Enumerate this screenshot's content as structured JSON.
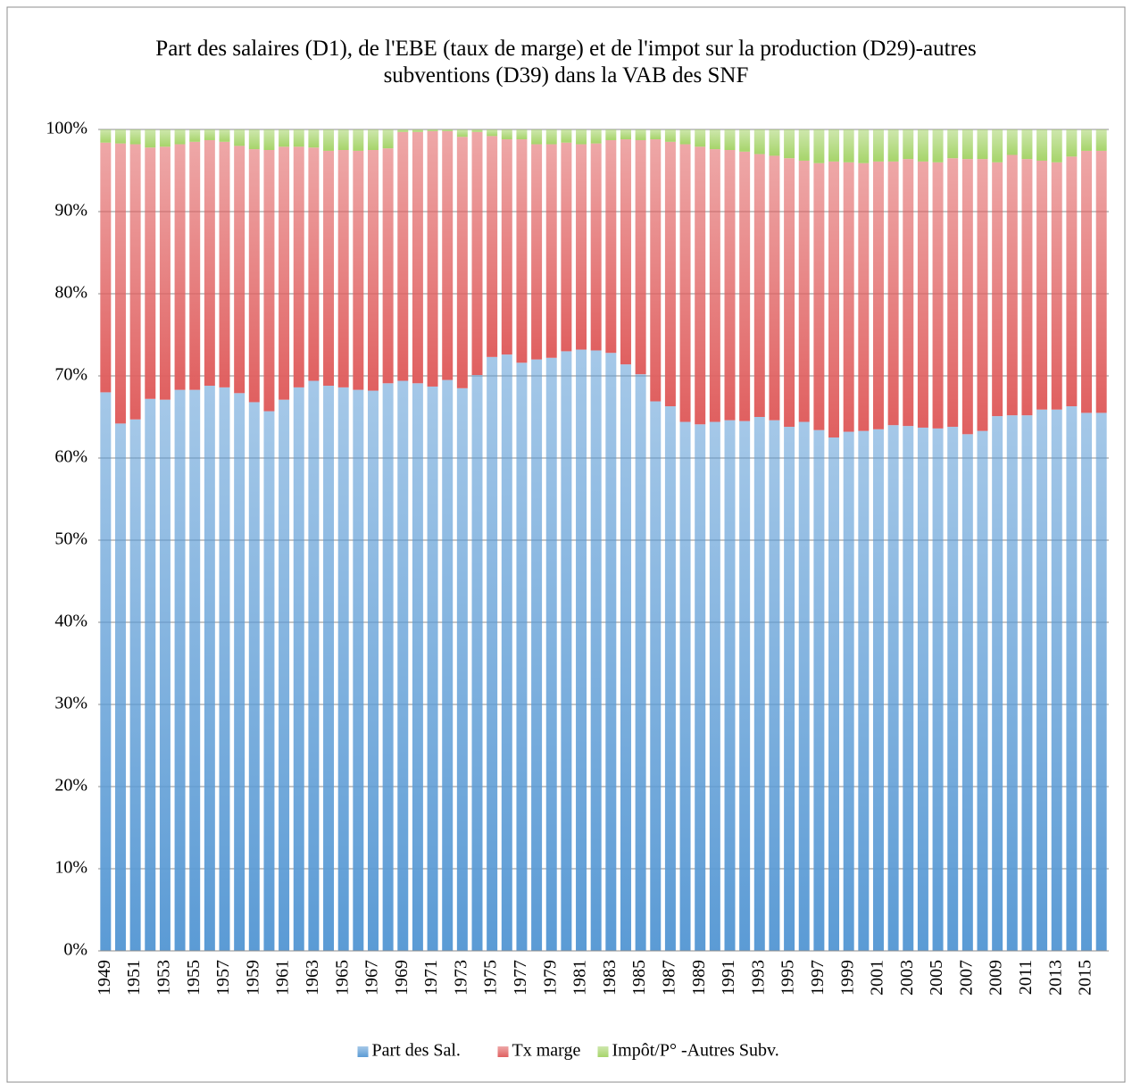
{
  "chart_data": {
    "type": "stacked_bar",
    "title": "Part des salaires (D1), de l'EBE (taux de marge) et de l'impot sur la production (D29)-autres subventions (D39) dans la VAB des SNF",
    "categories": [
      "1949",
      null,
      "1951",
      null,
      "1953",
      null,
      "1955",
      null,
      "1957",
      null,
      "1959",
      null,
      "1961",
      null,
      "1963",
      null,
      "1965",
      null,
      "1967",
      null,
      "1969",
      null,
      "1971",
      null,
      "1973",
      null,
      "1975",
      null,
      "1977",
      null,
      "1979",
      null,
      "1981",
      null,
      "1983",
      null,
      "1985",
      null,
      "1987",
      null,
      "1989",
      null,
      "1991",
      null,
      "1993",
      null,
      "1995",
      null,
      "1997",
      null,
      "1999",
      null,
      "2001",
      null,
      "2003",
      null,
      "2005",
      null,
      "2007",
      null,
      "2009",
      null,
      "2011",
      null,
      "2013",
      null,
      "2015",
      null
    ],
    "series": [
      {
        "name": "Part des Sal.",
        "color": "#5b9bd5",
        "values": [
          68.0,
          64.2,
          64.7,
          67.2,
          67.1,
          68.3,
          68.3,
          68.8,
          68.6,
          67.9,
          66.8,
          65.7,
          67.1,
          68.6,
          69.4,
          68.8,
          68.6,
          68.3,
          68.2,
          69.1,
          69.4,
          69.1,
          68.7,
          69.5,
          68.5,
          70.1,
          72.3,
          72.6,
          71.6,
          72.0,
          72.2,
          73.0,
          73.2,
          73.1,
          72.8,
          71.4,
          70.2,
          66.9,
          66.3,
          64.4,
          64.1,
          64.4,
          64.6,
          64.5,
          65.0,
          64.6,
          63.8,
          64.4,
          63.4,
          62.5,
          63.2,
          63.3,
          63.5,
          64.0,
          63.9,
          63.7,
          63.6,
          63.8,
          62.9,
          63.3,
          65.1,
          65.2,
          65.2,
          65.9,
          65.9,
          66.3,
          65.5,
          65.5
        ]
      },
      {
        "name": "Tx marge",
        "color": "#e06060",
        "values": [
          30.4,
          34.1,
          33.5,
          30.6,
          30.8,
          29.9,
          30.2,
          29.9,
          29.9,
          30.1,
          30.8,
          31.8,
          30.8,
          29.3,
          28.4,
          28.6,
          28.9,
          29.1,
          29.3,
          28.6,
          30.3,
          30.6,
          31.1,
          30.3,
          30.6,
          29.6,
          26.9,
          26.2,
          27.2,
          26.2,
          26.0,
          25.4,
          25.0,
          25.2,
          25.9,
          27.4,
          28.5,
          31.9,
          32.2,
          33.8,
          33.8,
          33.2,
          32.9,
          32.8,
          32.0,
          32.2,
          32.7,
          31.8,
          32.5,
          33.6,
          32.8,
          32.6,
          32.6,
          32.1,
          32.5,
          32.4,
          32.4,
          32.7,
          33.5,
          33.1,
          30.9,
          31.7,
          31.2,
          30.3,
          30.1,
          30.4,
          31.9,
          31.9
        ]
      },
      {
        "name": "Impôt/P° -Autres Subv.",
        "color": "#a6d46a",
        "values": [
          1.6,
          1.7,
          1.8,
          2.2,
          2.1,
          1.8,
          1.5,
          1.3,
          1.5,
          2.0,
          2.4,
          2.5,
          2.1,
          2.1,
          2.2,
          2.6,
          2.5,
          2.6,
          2.5,
          2.3,
          0.3,
          0.3,
          0.2,
          0.2,
          0.9,
          0.3,
          0.8,
          1.2,
          1.2,
          1.8,
          1.8,
          1.6,
          1.8,
          1.7,
          1.3,
          1.2,
          1.3,
          1.2,
          1.5,
          1.8,
          2.1,
          2.4,
          2.5,
          2.7,
          3.0,
          3.2,
          3.5,
          3.8,
          4.1,
          3.9,
          4.0,
          4.1,
          3.9,
          3.9,
          3.6,
          3.9,
          4.0,
          3.5,
          3.6,
          3.6,
          4.0,
          3.1,
          3.6,
          3.8,
          4.0,
          3.3,
          2.6,
          2.6
        ]
      }
    ],
    "ylim": [
      0,
      100
    ],
    "yticks": [
      {
        "value": 0,
        "label": "0%"
      },
      {
        "value": 10,
        "label": "10%"
      },
      {
        "value": 20,
        "label": "20%"
      },
      {
        "value": 30,
        "label": "30%"
      },
      {
        "value": 40,
        "label": "40%"
      },
      {
        "value": 50,
        "label": "50%"
      },
      {
        "value": 60,
        "label": "60%"
      },
      {
        "value": 70,
        "label": "70%"
      },
      {
        "value": 80,
        "label": "80%"
      },
      {
        "value": 90,
        "label": "90%"
      },
      {
        "value": 100,
        "label": "100%"
      }
    ],
    "grid": true,
    "legend": "bottom"
  }
}
